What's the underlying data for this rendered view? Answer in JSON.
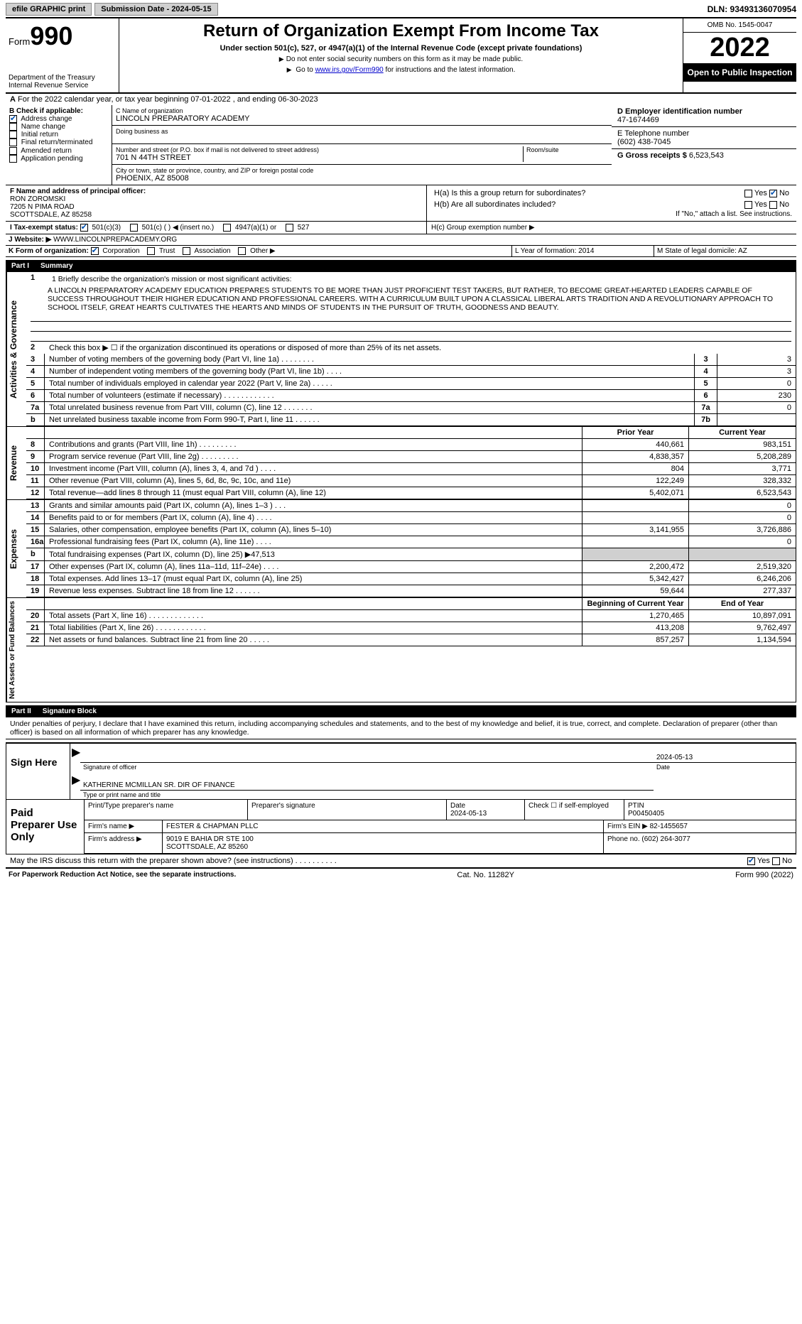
{
  "topbar": {
    "efile": "efile GRAPHIC print",
    "subLabel": "Submission Date - 2024-05-15",
    "dln": "DLN: 93493136070954"
  },
  "header": {
    "form": "Form",
    "formNum": "990",
    "dept": "Department of the Treasury Internal Revenue Service",
    "title": "Return of Organization Exempt From Income Tax",
    "sub": "Under section 501(c), 527, or 4947(a)(1) of the Internal Revenue Code (except private foundations)",
    "note1": "Do not enter social security numbers on this form as it may be made public.",
    "note2": "Go to ",
    "note2link": "www.irs.gov/Form990",
    "note2b": " for instructions and the latest information.",
    "omb": "OMB No. 1545-0047",
    "year": "2022",
    "open": "Open to Public Inspection"
  },
  "lineA": {
    "text": "For the 2022 calendar year, or tax year beginning 07-01-2022    , and ending 06-30-2023"
  },
  "secB": {
    "label": "B Check if applicable:",
    "opts": [
      "Address change",
      "Name change",
      "Initial return",
      "Final return/terminated",
      "Amended return",
      "Application pending"
    ],
    "checked": [
      true,
      false,
      false,
      false,
      false,
      false
    ]
  },
  "secC": {
    "nameLbl": "C Name of organization",
    "name": "LINCOLN PREPARATORY ACADEMY",
    "dbaLbl": "Doing business as",
    "dba": "",
    "addrLbl": "Number and street (or P.O. box if mail is not delivered to street address)",
    "room": "Room/suite",
    "addr": "701 N 44TH STREET",
    "cityLbl": "City or town, state or province, country, and ZIP or foreign postal code",
    "city": "PHOENIX, AZ  85008"
  },
  "secD": {
    "einLbl": "D Employer identification number",
    "ein": "47-1674469",
    "telLbl": "E Telephone number",
    "tel": "(602) 438-7045",
    "grossLbl": "G Gross receipts $",
    "gross": "6,523,543"
  },
  "secF": {
    "label": "F  Name and address of principal officer:",
    "name": "RON ZOROMSKI",
    "addr1": "7205 N PIMA ROAD",
    "addr2": "SCOTTSDALE, AZ  85258"
  },
  "secH": {
    "a": "H(a)  Is this a group return for subordinates?",
    "b": "H(b)  Are all subordinates included?",
    "note": "If \"No,\" attach a list. See instructions.",
    "c": "H(c)  Group exemption number ▶",
    "yes": "Yes",
    "no": "No"
  },
  "secI": {
    "label": "I  Tax-exempt status:",
    "opts": [
      "501(c)(3)",
      "501(c) (  ) ◀ (insert no.)",
      "4947(a)(1) or",
      "527"
    ]
  },
  "secJ": {
    "label": "J  Website: ▶",
    "val": "WWW.LINCOLNPREPACADEMY.ORG"
  },
  "secK": {
    "label": "K Form of organization:",
    "opts": [
      "Corporation",
      "Trust",
      "Association",
      "Other ▶"
    ]
  },
  "secL": {
    "label": "L Year of formation: 2014"
  },
  "secM": {
    "label": "M State of legal domicile: AZ"
  },
  "part1": {
    "title": "Part I",
    "name": "Summary"
  },
  "mission": {
    "lbl": "1  Briefly describe the organization's mission or most significant activities:",
    "txt": "A LINCOLN PREPARATORY ACADEMY EDUCATION PREPARES STUDENTS TO BE MORE THAN JUST PROFICIENT TEST TAKERS, BUT RATHER, TO BECOME GREAT-HEARTED LEADERS CAPABLE OF SUCCESS THROUGHOUT THEIR HIGHER EDUCATION AND PROFESSIONAL CAREERS. WITH A CURRICULUM BUILT UPON A CLASSICAL LIBERAL ARTS TRADITION AND A REVOLUTIONARY APPROACH TO SCHOOL ITSELF, GREAT HEARTS CULTIVATES THE HEARTS AND MINDS OF STUDENTS IN THE PURSUIT OF TRUTH, GOODNESS AND BEAUTY."
  },
  "gov": {
    "l2": "Check this box ▶ ☐  if the organization discontinued its operations or disposed of more than 25% of its net assets.",
    "rows": [
      {
        "n": "3",
        "t": "Number of voting members of the governing body (Part VI, line 1a)   .    .    .    .    .    .    .    .",
        "c": "3",
        "v": "3"
      },
      {
        "n": "4",
        "t": "Number of independent voting members of the governing body (Part VI, line 1b)   .    .    .    .",
        "c": "4",
        "v": "3"
      },
      {
        "n": "5",
        "t": "Total number of individuals employed in calendar year 2022 (Part V, line 2a)   .    .    .    .    .",
        "c": "5",
        "v": "0"
      },
      {
        "n": "6",
        "t": "Total number of volunteers (estimate if necessary)   .    .    .    .    .    .    .    .    .    .    .    .",
        "c": "6",
        "v": "230"
      },
      {
        "n": "7a",
        "t": "Total unrelated business revenue from Part VIII, column (C), line 12   .    .    .    .    .    .    .",
        "c": "7a",
        "v": "0"
      },
      {
        "n": "b",
        "t": "Net unrelated business taxable income from Form 990-T, Part I, line 11   .    .    .    .    .    .",
        "c": "7b",
        "v": ""
      }
    ]
  },
  "finHdr": {
    "prior": "Prior Year",
    "curr": "Current Year"
  },
  "revenue": [
    {
      "n": "8",
      "t": "Contributions and grants (Part VIII, line 1h)   .    .    .    .    .    .    .    .    .",
      "p": "440,661",
      "c": "983,151"
    },
    {
      "n": "9",
      "t": "Program service revenue (Part VIII, line 2g)   .    .    .    .    .    .    .    .    .",
      "p": "4,838,357",
      "c": "5,208,289"
    },
    {
      "n": "10",
      "t": "Investment income (Part VIII, column (A), lines 3, 4, and 7d )   .    .    .    .",
      "p": "804",
      "c": "3,771"
    },
    {
      "n": "11",
      "t": "Other revenue (Part VIII, column (A), lines 5, 6d, 8c, 9c, 10c, and 11e)",
      "p": "122,249",
      "c": "328,332"
    },
    {
      "n": "12",
      "t": "Total revenue—add lines 8 through 11 (must equal Part VIII, column (A), line 12)",
      "p": "5,402,071",
      "c": "6,523,543"
    }
  ],
  "expenses": [
    {
      "n": "13",
      "t": "Grants and similar amounts paid (Part IX, column (A), lines 1–3 )   .    .    .",
      "p": "",
      "c": "0"
    },
    {
      "n": "14",
      "t": "Benefits paid to or for members (Part IX, column (A), line 4)   .    .    .    .",
      "p": "",
      "c": "0"
    },
    {
      "n": "15",
      "t": "Salaries, other compensation, employee benefits (Part IX, column (A), lines 5–10)",
      "p": "3,141,955",
      "c": "3,726,886"
    },
    {
      "n": "16a",
      "t": "Professional fundraising fees (Part IX, column (A), line 11e)   .    .    .    .",
      "p": "",
      "c": "0"
    },
    {
      "n": "b",
      "t": "Total fundraising expenses (Part IX, column (D), line 25) ▶47,513",
      "p": "gray",
      "c": "gray"
    },
    {
      "n": "17",
      "t": "Other expenses (Part IX, column (A), lines 11a–11d, 11f–24e)   .    .    .    .",
      "p": "2,200,472",
      "c": "2,519,320"
    },
    {
      "n": "18",
      "t": "Total expenses. Add lines 13–17 (must equal Part IX, column (A), line 25)",
      "p": "5,342,427",
      "c": "6,246,206"
    },
    {
      "n": "19",
      "t": "Revenue less expenses. Subtract line 18 from line 12   .    .    .    .    .    .",
      "p": "59,644",
      "c": "277,337"
    }
  ],
  "netHdr": {
    "b": "Beginning of Current Year",
    "e": "End of Year"
  },
  "net": [
    {
      "n": "20",
      "t": "Total assets (Part X, line 16)   .    .    .    .    .    .    .    .    .    .    .    .    .",
      "p": "1,270,465",
      "c": "10,897,091"
    },
    {
      "n": "21",
      "t": "Total liabilities (Part X, line 26)   .    .    .    .    .    .    .    .    .    .    .    .",
      "p": "413,208",
      "c": "9,762,497"
    },
    {
      "n": "22",
      "t": "Net assets or fund balances. Subtract line 21 from line 20   .    .    .    .    .",
      "p": "857,257",
      "c": "1,134,594"
    }
  ],
  "part2": {
    "title": "Part II",
    "name": "Signature Block"
  },
  "decl": "Under penalties of perjury, I declare that I have examined this return, including accompanying schedules and statements, and to the best of my knowledge and belief, it is true, correct, and complete. Declaration of preparer (other than officer) is based on all information of which preparer has any knowledge.",
  "sign": {
    "here": "Sign Here",
    "sigLbl": "Signature of officer",
    "dateLbl": "Date",
    "date": "2024-05-13",
    "name": "KATHERINE MCMILLAN  SR. DIR OF FINANCE",
    "nameLbl": "Type or print name and title"
  },
  "prep": {
    "label": "Paid Preparer Use Only",
    "h": [
      "Print/Type preparer's name",
      "Preparer's signature",
      "Date",
      "",
      "PTIN"
    ],
    "date": "2024-05-13",
    "chk": "Check ☐ if self-employed",
    "ptin": "P00450405",
    "firmLbl": "Firm's name   ▶",
    "firm": "FESTER & CHAPMAN PLLC",
    "einLbl": "Firm's EIN ▶",
    "ein": "82-1455657",
    "addrLbl": "Firm's address ▶",
    "addr": "9019 E BAHIA DR STE 100",
    "addr2": "SCOTTSDALE, AZ  85260",
    "phLbl": "Phone no.",
    "ph": "(602) 264-3077"
  },
  "may": "May the IRS discuss this return with the preparer shown above? (see instructions)   .    .    .    .    .    .    .    .    .    .",
  "foot": {
    "l": "For Paperwork Reduction Act Notice, see the separate instructions.",
    "c": "Cat. No. 11282Y",
    "r": "Form 990 (2022)"
  }
}
